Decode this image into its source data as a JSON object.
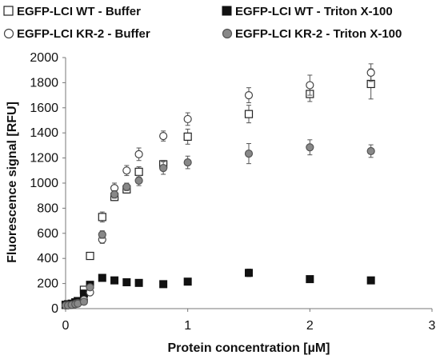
{
  "chart_data": {
    "type": "scatter",
    "title": "",
    "xlabel": "Protein concentration [µM]",
    "ylabel": "Fluorescence signal [RFU]",
    "xlim": [
      0,
      3
    ],
    "ylim": [
      0,
      2000
    ],
    "x_ticks": [
      "0",
      "1",
      "2",
      "3"
    ],
    "y_ticks": [
      "0",
      "200",
      "400",
      "600",
      "800",
      "1000",
      "1200",
      "1400",
      "1600",
      "1800",
      "2000"
    ],
    "grid": false,
    "legend_position": "top",
    "series": [
      {
        "name": "EGFP-LCI WT - Buffer",
        "marker": "square-open",
        "x": [
          0.0,
          0.02,
          0.05,
          0.08,
          0.1,
          0.15,
          0.2,
          0.3,
          0.4,
          0.5,
          0.6,
          0.8,
          1.0,
          1.5,
          2.0,
          2.5
        ],
        "y": [
          30,
          35,
          35,
          50,
          60,
          150,
          420,
          730,
          890,
          950,
          1090,
          1150,
          1370,
          1550,
          1710,
          1790
        ],
        "err": [
          10,
          10,
          10,
          10,
          15,
          20,
          20,
          40,
          30,
          30,
          40,
          30,
          60,
          70,
          60,
          120
        ]
      },
      {
        "name": "EGFP-LCI WT - Triton X-100",
        "marker": "square-filled",
        "x": [
          0.0,
          0.02,
          0.05,
          0.08,
          0.1,
          0.15,
          0.2,
          0.3,
          0.4,
          0.5,
          0.6,
          0.8,
          1.0,
          1.5,
          2.0,
          2.5
        ],
        "y": [
          30,
          30,
          40,
          50,
          60,
          120,
          190,
          245,
          225,
          210,
          205,
          195,
          215,
          285,
          235,
          225
        ],
        "err": [
          10,
          10,
          10,
          10,
          10,
          15,
          15,
          20,
          15,
          15,
          15,
          15,
          15,
          30,
          25,
          15
        ]
      },
      {
        "name": "EGFP-LCI KR-2 - Buffer",
        "marker": "circle-open",
        "x": [
          0.0,
          0.02,
          0.05,
          0.08,
          0.1,
          0.15,
          0.2,
          0.3,
          0.4,
          0.5,
          0.6,
          0.8,
          1.0,
          1.5,
          2.0,
          2.5
        ],
        "y": [
          25,
          30,
          30,
          40,
          45,
          70,
          130,
          550,
          960,
          1100,
          1230,
          1375,
          1510,
          1700,
          1780,
          1880
        ],
        "err": [
          10,
          10,
          10,
          10,
          10,
          15,
          20,
          30,
          40,
          40,
          50,
          40,
          50,
          60,
          80,
          70
        ]
      },
      {
        "name": "EGFP-LCI KR-2 - Triton X-100",
        "marker": "circle-gray",
        "x": [
          0.0,
          0.02,
          0.05,
          0.08,
          0.1,
          0.15,
          0.2,
          0.3,
          0.4,
          0.5,
          0.6,
          0.8,
          1.0,
          1.5,
          2.0,
          2.5
        ],
        "y": [
          25,
          25,
          30,
          35,
          40,
          55,
          170,
          590,
          910,
          970,
          1020,
          1120,
          1165,
          1235,
          1285,
          1255
        ],
        "err": [
          10,
          10,
          10,
          10,
          10,
          10,
          20,
          30,
          30,
          30,
          40,
          50,
          50,
          80,
          60,
          50
        ]
      }
    ]
  }
}
